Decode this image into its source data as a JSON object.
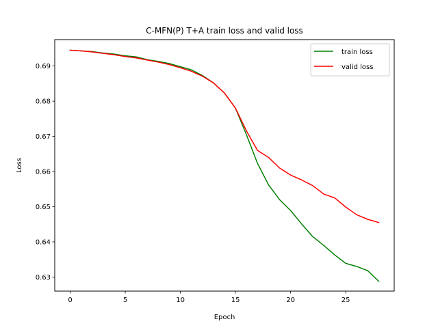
{
  "chart_data": {
    "type": "line",
    "title": "C-MFN(P) T+A train loss and valid loss",
    "xlabel": "Epoch",
    "ylabel": "Loss",
    "xlim": [
      -1.4,
      29.4
    ],
    "ylim": [
      0.626,
      0.6975
    ],
    "xticks": [
      0,
      5,
      10,
      15,
      20,
      25
    ],
    "yticks": [
      0.63,
      0.64,
      0.65,
      0.66,
      0.67,
      0.68,
      0.69
    ],
    "grid": false,
    "legend_position": "top-right",
    "x": [
      0,
      1,
      2,
      3,
      4,
      5,
      6,
      7,
      8,
      9,
      10,
      11,
      12,
      13,
      14,
      15,
      16,
      17,
      18,
      19,
      20,
      21,
      22,
      23,
      24,
      25,
      26,
      27,
      28
    ],
    "series": [
      {
        "name": "train loss",
        "color": "#008000",
        "values": [
          0.6945,
          0.6943,
          0.6941,
          0.6937,
          0.6934,
          0.6929,
          0.6926,
          0.6918,
          0.6913,
          0.6907,
          0.6898,
          0.6889,
          0.6873,
          0.6852,
          0.6823,
          0.678,
          0.6704,
          0.6623,
          0.6562,
          0.652,
          0.6489,
          0.6451,
          0.6415,
          0.639,
          0.6363,
          0.6339,
          0.633,
          0.6318,
          0.6288
        ]
      },
      {
        "name": "valid loss",
        "color": "#ff0000",
        "values": [
          0.6945,
          0.6943,
          0.694,
          0.6936,
          0.6932,
          0.6927,
          0.6923,
          0.6917,
          0.6911,
          0.6904,
          0.6895,
          0.6885,
          0.6871,
          0.6852,
          0.6823,
          0.678,
          0.6715,
          0.666,
          0.664,
          0.661,
          0.659,
          0.6576,
          0.656,
          0.6536,
          0.6525,
          0.6499,
          0.6477,
          0.6464,
          0.6455
        ]
      }
    ]
  }
}
